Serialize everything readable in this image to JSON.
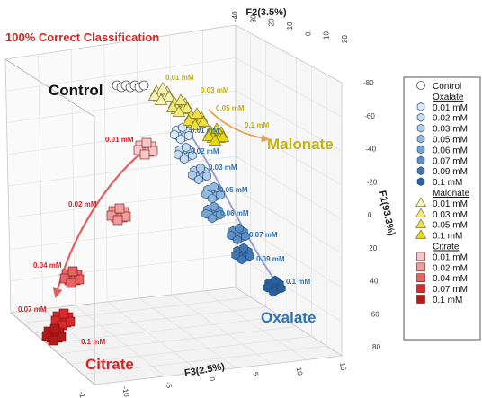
{
  "chart_data": {
    "type": "scatter",
    "subtype": "3d-scatter-pca",
    "title": "100% Correct Classification",
    "axes": {
      "F1": {
        "label": "F1(93.3%)",
        "ticks": [
          "-80",
          "-60",
          "-40",
          "-20",
          "0",
          "20",
          "40",
          "60",
          "80"
        ]
      },
      "F2": {
        "label": "F2(3.5%)",
        "ticks": [
          "-40",
          "-30",
          "-20",
          "-10",
          "0",
          "10",
          "20"
        ]
      },
      "F3": {
        "label": "F3(2.5%)",
        "ticks": [
          "-15",
          "-10",
          "-5",
          "0",
          "5",
          "10",
          "15"
        ]
      }
    },
    "groups": [
      {
        "name": "Control",
        "label": "Control",
        "label_color": "#111111",
        "marker": "circle",
        "series": [
          {
            "name": "Control",
            "conc": "",
            "color": "#ffffff"
          }
        ]
      },
      {
        "name": "Oxalate",
        "label": "Oxalate",
        "label_color": "#2e75b6",
        "marker": "hexagon",
        "series": [
          {
            "name": "0.01 mM",
            "conc": "0.01 mM",
            "color": "#dbe8f5"
          },
          {
            "name": "0.02 mM",
            "conc": "0.02 mM",
            "color": "#c7dcf0"
          },
          {
            "name": "0.03 mM",
            "conc": "0.03 mM",
            "color": "#b0cde9"
          },
          {
            "name": "0.05 mM",
            "conc": "0.05 mM",
            "color": "#93badf"
          },
          {
            "name": "0.06 mM",
            "conc": "0.06 mM",
            "color": "#74a5d3"
          },
          {
            "name": "0.07 mM",
            "conc": "0.07 mM",
            "color": "#5a90c6"
          },
          {
            "name": "0.09 mM",
            "conc": "0.09 mM",
            "color": "#3f77b4"
          },
          {
            "name": "0.1 mM",
            "conc": "0.1 mM",
            "color": "#27609f"
          }
        ]
      },
      {
        "name": "Malonate",
        "label": "Malonate",
        "label_color": "#c3b30e",
        "marker": "triangle",
        "series": [
          {
            "name": "0.01 mM",
            "conc": "0.01 mM",
            "color": "#f8f3b7"
          },
          {
            "name": "0.03 mM",
            "conc": "0.03 mM",
            "color": "#f3ea7f"
          },
          {
            "name": "0.05 mM",
            "conc": "0.05 mM",
            "color": "#eedf46"
          },
          {
            "name": "0.1 mM",
            "conc": "0.1 mM",
            "color": "#e8d611"
          }
        ]
      },
      {
        "name": "Citrate",
        "label": "Citrate",
        "label_color": "#d62424",
        "marker": "square",
        "series": [
          {
            "name": "0.01 mM",
            "conc": "0.01 mM",
            "color": "#f6c7c7"
          },
          {
            "name": "0.02 mM",
            "conc": "0.02 mM",
            "color": "#ef9c9c"
          },
          {
            "name": "0.04 mM",
            "conc": "0.04 mM",
            "color": "#e56464"
          },
          {
            "name": "0.07 mM",
            "conc": "0.07 mM",
            "color": "#d82a2a"
          },
          {
            "name": "0.1 mM",
            "conc": "0.1 mM",
            "color": "#b01a1a"
          }
        ]
      }
    ],
    "legend_placement": "right",
    "grid": true
  }
}
